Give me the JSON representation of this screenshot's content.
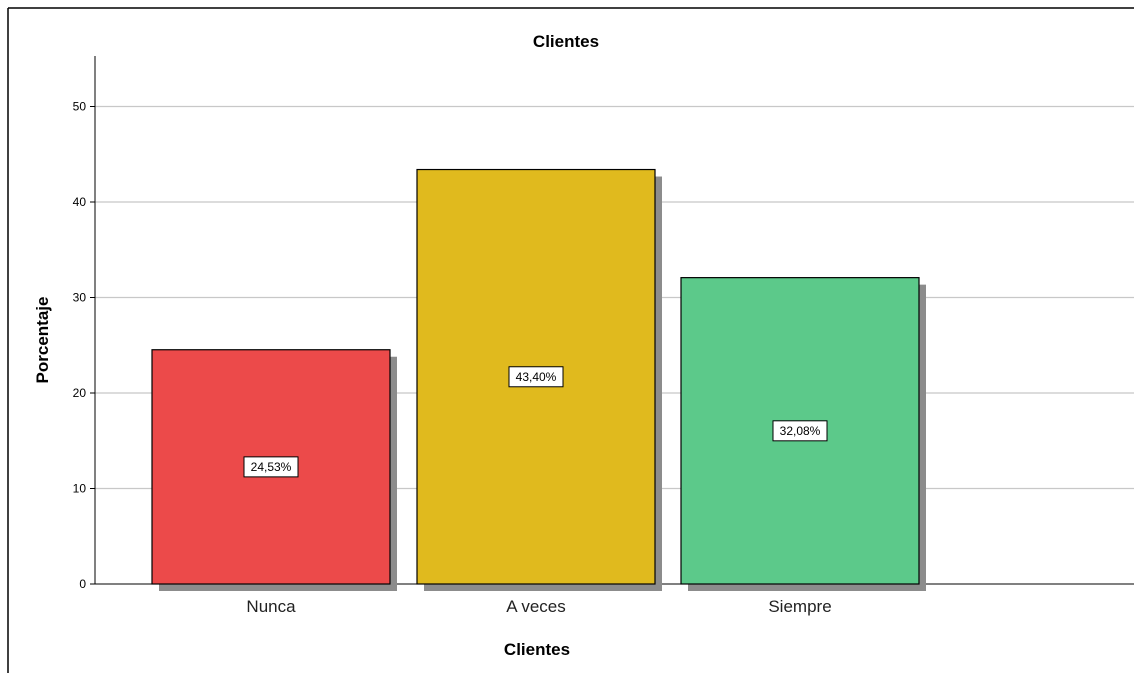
{
  "chart_data": {
    "type": "bar",
    "title": "Clientes",
    "xlabel": "Clientes",
    "ylabel": "Porcentaje",
    "categories": [
      "Nunca",
      "A veces",
      "Siempre"
    ],
    "values": [
      24.53,
      43.4,
      32.08
    ],
    "data_labels": [
      "24,53%",
      "43,40%",
      "32,08%"
    ],
    "ylim": [
      0,
      55
    ],
    "yticks": [
      0,
      10,
      20,
      30,
      40,
      50
    ],
    "ytick_labels": [
      "0",
      "10",
      "20",
      "30",
      "40",
      "50"
    ],
    "grid": true,
    "legend": "none",
    "colors": [
      "#ec4a4a",
      "#e0ba1e",
      "#5cc98a"
    ],
    "shadow_color": "#8c8c8c",
    "grid_color": "#c8c8c8",
    "background": "#ffffff"
  }
}
